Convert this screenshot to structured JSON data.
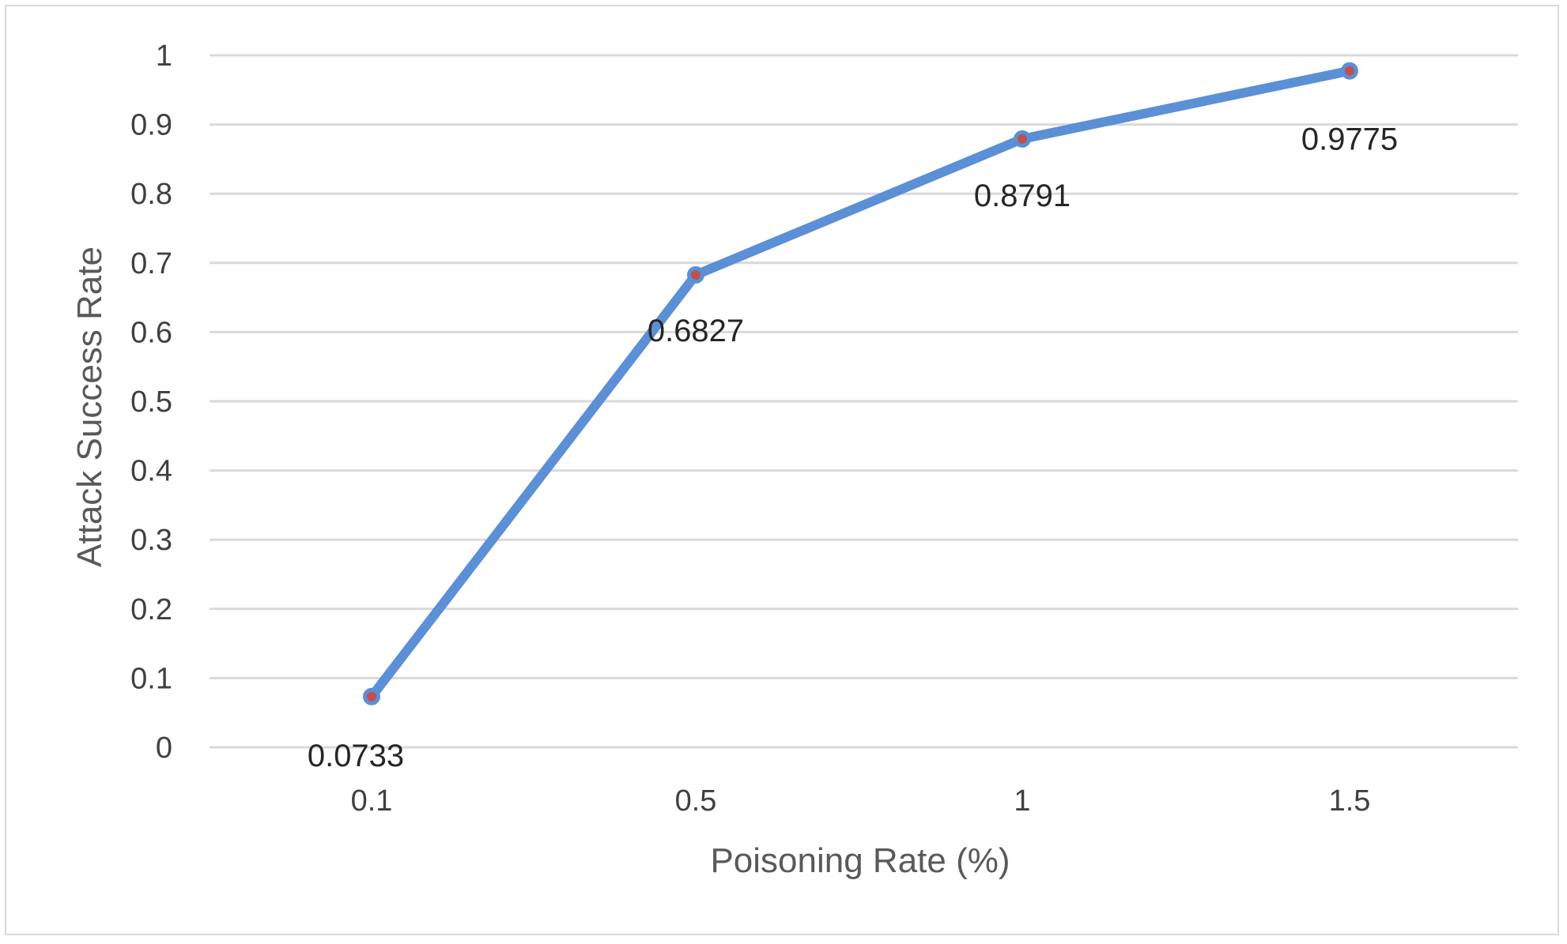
{
  "chart_data": {
    "type": "line",
    "title": "",
    "xlabel": "Poisoning  Rate (%)",
    "ylabel": "Attack Success Rate",
    "categories": [
      "0.1",
      "0.5",
      "1",
      "1.5"
    ],
    "series": [
      {
        "values": [
          0.0733,
          0.6827,
          0.8791,
          0.9775
        ]
      }
    ],
    "data_labels": [
      "0.0733",
      "0.6827",
      "0.8791",
      "0.9775"
    ],
    "y_ticks": [
      "0",
      "0.1",
      "0.2",
      "0.3",
      "0.4",
      "0.5",
      "0.6",
      "0.7",
      "0.8",
      "0.9",
      "1"
    ],
    "ylim": [
      0,
      1
    ],
    "grid": true,
    "legend": "none",
    "colors": {
      "line": "#5b8fd6",
      "marker": "#c0504d",
      "grid": "#d9d9d9"
    }
  }
}
